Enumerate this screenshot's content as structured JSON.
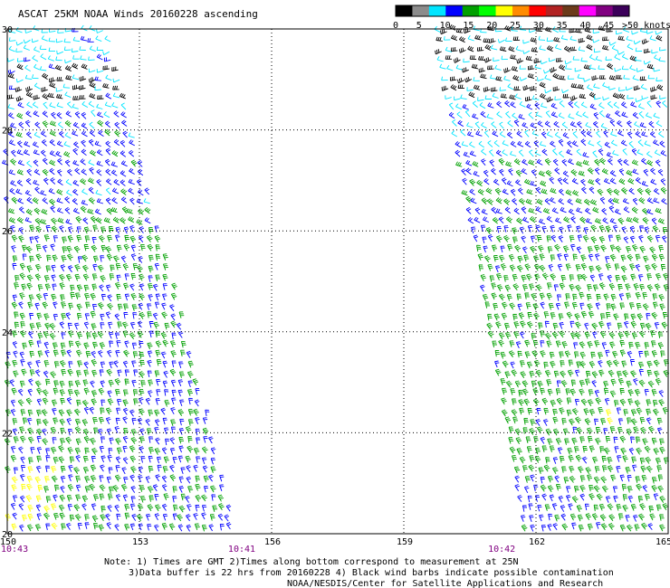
{
  "title": "ASCAT 25KM NOAA Winds 20160228 ascending",
  "legend": {
    "labels": [
      "0",
      "5",
      "10",
      "15",
      "20",
      "25",
      "30",
      "35",
      "40",
      "45",
      ">50 knots"
    ],
    "colors": [
      "#000000",
      "#8c8c8c",
      "#00e5ff",
      "#0000ff",
      "#00a000",
      "#00ff00",
      "#ffff00",
      "#ff8c00",
      "#ff0000",
      "#b22222",
      "#6b3a1a",
      "#ff00ff",
      "#800080",
      "#3c005a"
    ]
  },
  "map": {
    "lon_ticks": [
      "150",
      "153",
      "156",
      "159",
      "162",
      "165"
    ],
    "lat_ticks": [
      "30",
      "28",
      "26",
      "24",
      "22",
      "20"
    ],
    "lon_range": [
      150,
      165
    ],
    "lat_range": [
      20,
      30
    ],
    "times": [
      {
        "label": "10:43",
        "lon": 150.0
      },
      {
        "label": "10:41",
        "lon": 155.3
      },
      {
        "label": "10:42",
        "lon": 161.2
      }
    ],
    "swaths": [
      {
        "name": "west",
        "top_lons": [
          150.0,
          152.3
        ],
        "bottom_lons": [
          150.0,
          155.2
        ]
      },
      {
        "name": "east",
        "top_lons": [
          159.8,
          165.0
        ],
        "bottom_lons": [
          161.8,
          165.0
        ]
      }
    ],
    "speed_colors": {
      "contaminated": "#000000",
      "5-10": "#00e5ff",
      "10-15": "#0000ff",
      "15-20": "#00a000",
      "20-25": "#ffff00"
    }
  },
  "notes": {
    "line1": "Note: 1) Times are GMT 2)Times along bottom correspond to measurement at 25N",
    "line2": "3)Data buffer is 22 hrs from 20160228 4) Black wind barbs indicate possible contamination",
    "line3": "NOAA/NESDIS/Center for Satellite Applications and Research"
  }
}
